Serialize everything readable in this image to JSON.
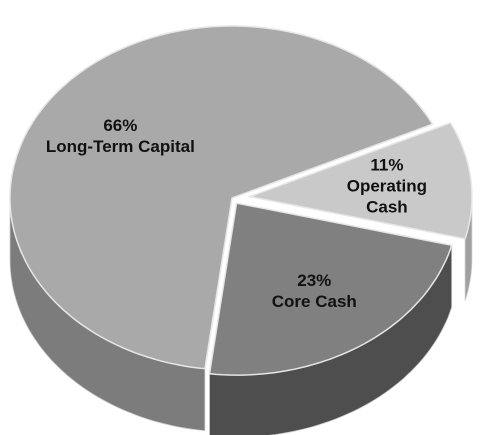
{
  "chart_data": {
    "type": "pie",
    "categories": [
      "Long-Term Capital",
      "Operating Cash",
      "Core Cash"
    ],
    "values": [
      66,
      11,
      23
    ],
    "value_labels": [
      "66%",
      "11%",
      "23%"
    ],
    "colors": [
      "#a9a9a9",
      "#c9c9c9",
      "#808080"
    ],
    "side_colors": [
      "#7c7c7c",
      "#a0a0a0",
      "#4e4e4e"
    ]
  }
}
